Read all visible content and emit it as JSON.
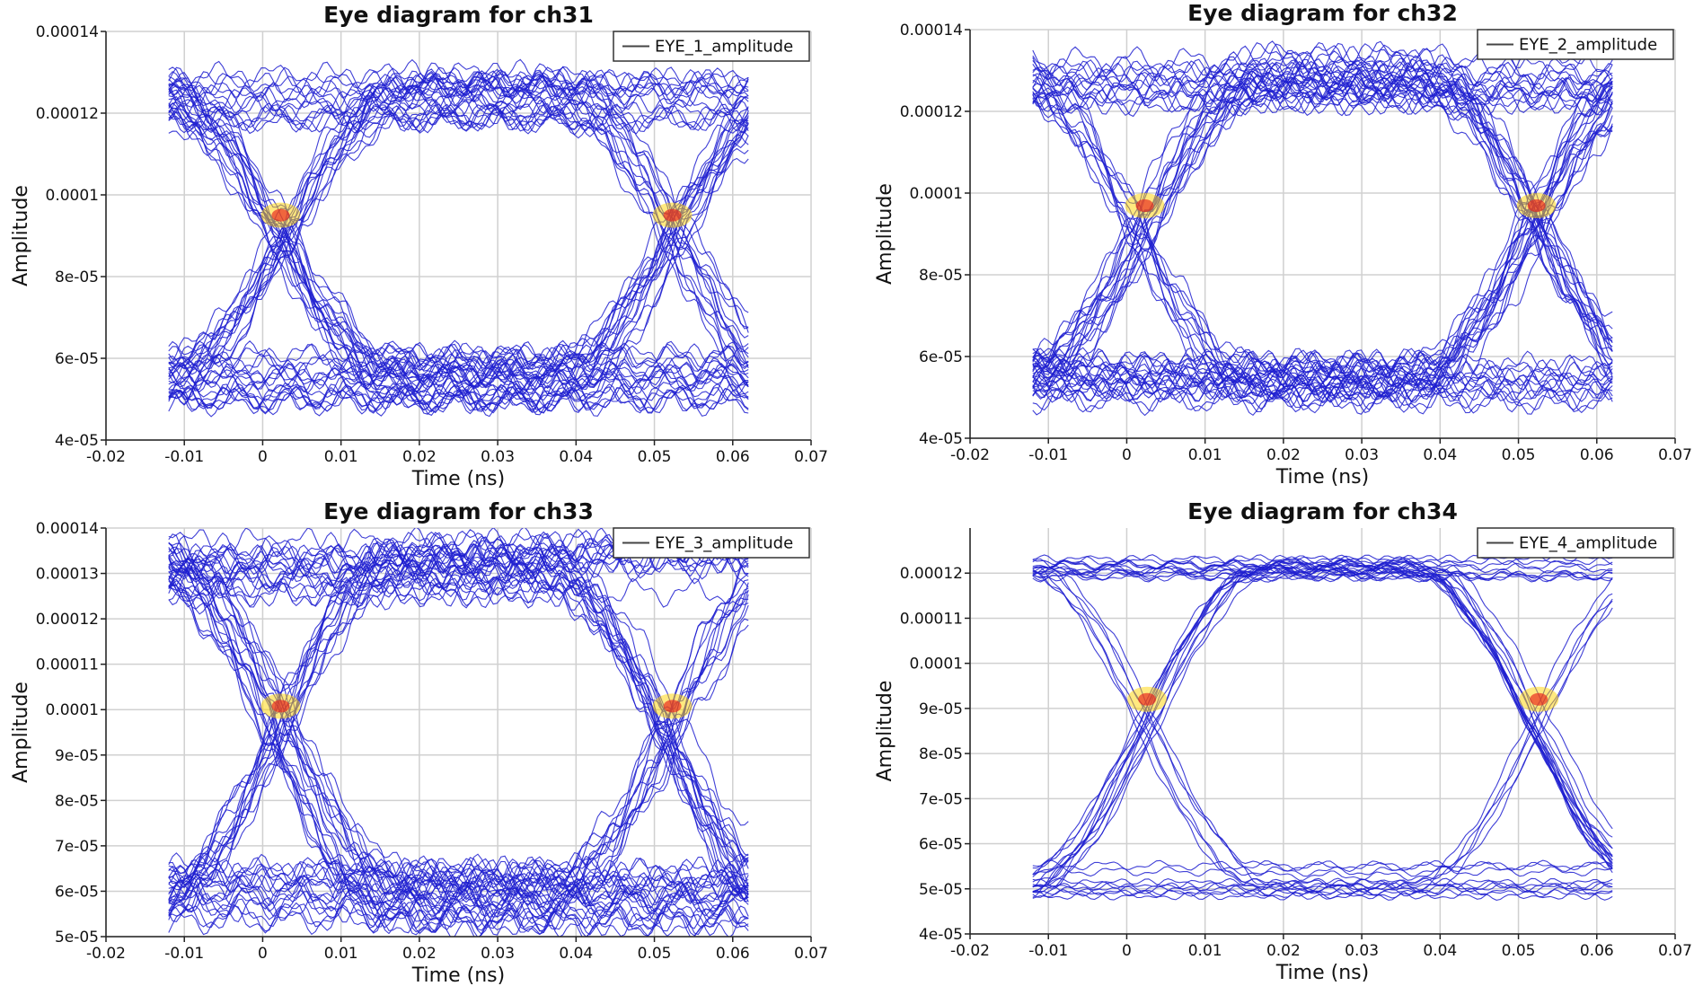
{
  "chart_data": [
    {
      "type": "line",
      "title": "Eye diagram for ch31",
      "xlabel": "Time (ns)",
      "ylabel": "Amplitude",
      "xlim": [
        -0.02,
        0.07
      ],
      "ylim": [
        4e-05,
        0.00014
      ],
      "x_ticks": [
        -0.02,
        -0.01,
        0,
        0.01,
        0.02,
        0.03,
        0.04,
        0.05,
        0.06,
        0.07
      ],
      "x_tick_labels": [
        "-0.02",
        "-0.01",
        "0",
        "0.01",
        "0.02",
        "0.03",
        "0.04",
        "0.05",
        "0.06",
        "0.07"
      ],
      "y_ticks": [
        4e-05,
        6e-05,
        8e-05,
        0.0001,
        0.00012,
        0.00014
      ],
      "y_tick_labels": [
        "4e-05",
        "6e-05",
        "8e-05",
        "0.0001",
        "0.00012",
        "0.00014"
      ],
      "grid": true,
      "legend_position": "top-right",
      "series": [
        {
          "name": "EYE_1_amplitude",
          "color": "#1f1fd0",
          "x_range": [
            -0.012,
            0.062
          ],
          "bit_period": 0.05,
          "crossings": [
            0.0023,
            0.0523
          ],
          "high_level": 0.000124,
          "low_level": 5.5e-05,
          "high_spread": 1.2e-05,
          "low_spread": 1.2e-05,
          "trace_count": 65
        }
      ]
    },
    {
      "type": "line",
      "title": "Eye diagram for ch32",
      "xlabel": "Time (ns)",
      "ylabel": "Amplitude",
      "xlim": [
        -0.02,
        0.07
      ],
      "ylim": [
        4e-05,
        0.00014
      ],
      "x_ticks": [
        -0.02,
        -0.01,
        0,
        0.01,
        0.02,
        0.03,
        0.04,
        0.05,
        0.06,
        0.07
      ],
      "x_tick_labels": [
        "-0.02",
        "-0.01",
        "0",
        "0.01",
        "0.02",
        "0.03",
        "0.04",
        "0.05",
        "0.06",
        "0.07"
      ],
      "y_ticks": [
        4e-05,
        6e-05,
        8e-05,
        0.0001,
        0.00012,
        0.00014
      ],
      "y_tick_labels": [
        "4e-05",
        "6e-05",
        "8e-05",
        "0.0001",
        "0.00012",
        "0.00014"
      ],
      "grid": true,
      "legend_position": "top-right",
      "series": [
        {
          "name": "EYE_2_amplitude",
          "color": "#1f1fd0",
          "x_range": [
            -0.012,
            0.062
          ],
          "bit_period": 0.05,
          "crossings": [
            0.0023,
            0.0523
          ],
          "high_level": 0.000128,
          "low_level": 5.4e-05,
          "high_spread": 1.2e-05,
          "low_spread": 1.1e-05,
          "trace_count": 65
        }
      ]
    },
    {
      "type": "line",
      "title": "Eye diagram for ch33",
      "xlabel": "Time (ns)",
      "ylabel": "Amplitude",
      "xlim": [
        -0.02,
        0.07
      ],
      "ylim": [
        5e-05,
        0.00014
      ],
      "x_ticks": [
        -0.02,
        -0.01,
        0,
        0.01,
        0.02,
        0.03,
        0.04,
        0.05,
        0.06,
        0.07
      ],
      "x_tick_labels": [
        "-0.02",
        "-0.01",
        "0",
        "0.01",
        "0.02",
        "0.03",
        "0.04",
        "0.05",
        "0.06",
        "0.07"
      ],
      "y_ticks": [
        5e-05,
        6e-05,
        7e-05,
        8e-05,
        9e-05,
        0.0001,
        0.00011,
        0.00012,
        0.00013,
        0.00014
      ],
      "y_tick_labels": [
        "5e-05",
        "6e-05",
        "7e-05",
        "8e-05",
        "9e-05",
        "0.0001",
        "0.00011",
        "0.00012",
        "0.00013",
        "0.00014"
      ],
      "grid": true,
      "legend_position": "top-right",
      "series": [
        {
          "name": "EYE_3_amplitude",
          "color": "#1f1fd0",
          "x_range": [
            -0.012,
            0.062
          ],
          "bit_period": 0.05,
          "crossings": [
            0.0023,
            0.0523
          ],
          "high_level": 0.000131,
          "low_level": 5.9e-05,
          "high_spread": 1.2e-05,
          "low_spread": 1.3e-05,
          "trace_count": 70
        }
      ]
    },
    {
      "type": "line",
      "title": "Eye diagram for ch34",
      "xlabel": "Time (ns)",
      "ylabel": "Amplitude",
      "xlim": [
        -0.02,
        0.07
      ],
      "ylim": [
        4e-05,
        0.00013
      ],
      "x_ticks": [
        -0.02,
        -0.01,
        0,
        0.01,
        0.02,
        0.03,
        0.04,
        0.05,
        0.06,
        0.07
      ],
      "x_tick_labels": [
        "-0.02",
        "-0.01",
        "0",
        "0.01",
        "0.02",
        "0.03",
        "0.04",
        "0.05",
        "0.06",
        "0.07"
      ],
      "y_ticks": [
        4e-05,
        5e-05,
        6e-05,
        7e-05,
        8e-05,
        9e-05,
        0.0001,
        0.00011,
        0.00012
      ],
      "y_tick_labels": [
        "4e-05",
        "5e-05",
        "6e-05",
        "7e-05",
        "8e-05",
        "9e-05",
        "0.0001",
        "0.00011",
        "0.00012"
      ],
      "grid": true,
      "legend_position": "top-right",
      "series": [
        {
          "name": "EYE_4_amplitude",
          "color": "#1f1fd0",
          "x_range": [
            -0.012,
            0.062
          ],
          "bit_period": 0.05,
          "crossings": [
            0.0026,
            0.0526
          ],
          "high_level": 0.000121,
          "low_level": 5.2e-05,
          "high_spread": 4e-06,
          "low_spread": 7e-06,
          "trace_count": 40
        }
      ]
    }
  ]
}
